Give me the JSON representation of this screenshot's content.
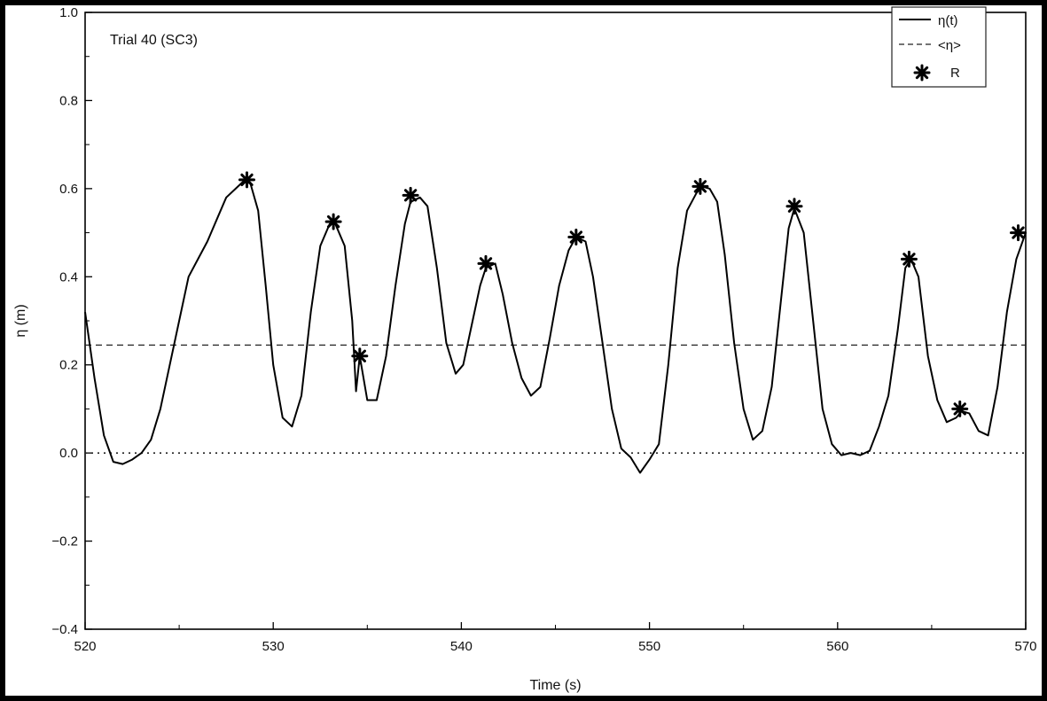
{
  "chart_data": {
    "type": "line",
    "title": "",
    "annotation": "Trial 40 (SC3)",
    "xlabel": "Time (s)",
    "ylabel": "η (m)",
    "xlim": [
      520,
      570
    ],
    "ylim": [
      -0.4,
      1.0
    ],
    "xticks": [
      520,
      530,
      540,
      550,
      560,
      570
    ],
    "xtick_labels": [
      "520",
      "530",
      "540",
      "550",
      "560",
      "570"
    ],
    "yticks": [
      -0.4,
      -0.2,
      0.0,
      0.2,
      0.4,
      0.6,
      0.8,
      1.0
    ],
    "ytick_labels": [
      "−0.4",
      "−0.2",
      "0.0",
      "0.2",
      "0.4",
      "0.6",
      "0.8",
      "1.0"
    ],
    "grid": false,
    "legend_position": "top-right",
    "legend": [
      "η(t)",
      "<η>",
      "R"
    ],
    "series": [
      {
        "name": "η(t)",
        "style": "solid",
        "x": [
          520.0,
          520.5,
          521.0,
          521.5,
          522.0,
          522.5,
          523.0,
          523.5,
          524.0,
          524.5,
          525.0,
          525.5,
          526.0,
          526.5,
          527.0,
          527.5,
          528.0,
          528.5,
          528.8,
          529.2,
          529.6,
          530.0,
          530.5,
          531.0,
          531.5,
          532.0,
          532.5,
          533.0,
          533.3,
          533.8,
          534.2,
          534.4,
          534.6,
          535.0,
          535.5,
          536.0,
          536.5,
          537.0,
          537.3,
          537.8,
          538.2,
          538.7,
          539.2,
          539.7,
          540.1,
          540.6,
          541.0,
          541.3,
          541.8,
          542.2,
          542.7,
          543.2,
          543.7,
          544.2,
          544.7,
          545.2,
          545.7,
          546.1,
          546.6,
          547.0,
          547.5,
          548.0,
          548.5,
          549.0,
          549.5,
          550.0,
          550.5,
          551.0,
          551.5,
          552.0,
          552.5,
          552.8,
          553.2,
          553.6,
          554.0,
          554.5,
          555.0,
          555.5,
          556.0,
          556.5,
          557.0,
          557.4,
          557.7,
          558.2,
          558.7,
          559.2,
          559.7,
          560.2,
          560.7,
          561.2,
          561.7,
          562.2,
          562.7,
          563.2,
          563.6,
          563.9,
          564.3,
          564.8,
          565.3,
          565.8,
          566.3,
          566.6,
          567.0,
          567.5,
          568.0,
          568.5,
          569.0,
          569.5,
          570.0
        ],
        "y": [
          0.32,
          0.17,
          0.04,
          -0.02,
          -0.025,
          -0.015,
          0.0,
          0.03,
          0.1,
          0.2,
          0.3,
          0.4,
          0.44,
          0.48,
          0.53,
          0.58,
          0.6,
          0.62,
          0.61,
          0.55,
          0.38,
          0.2,
          0.08,
          0.06,
          0.13,
          0.32,
          0.47,
          0.52,
          0.52,
          0.47,
          0.3,
          0.14,
          0.22,
          0.12,
          0.12,
          0.22,
          0.38,
          0.52,
          0.57,
          0.58,
          0.56,
          0.42,
          0.25,
          0.18,
          0.2,
          0.3,
          0.38,
          0.42,
          0.43,
          0.36,
          0.25,
          0.17,
          0.13,
          0.15,
          0.26,
          0.38,
          0.46,
          0.49,
          0.48,
          0.4,
          0.25,
          0.1,
          0.01,
          -0.01,
          -0.045,
          -0.015,
          0.02,
          0.2,
          0.42,
          0.55,
          0.59,
          0.605,
          0.6,
          0.57,
          0.45,
          0.25,
          0.1,
          0.03,
          0.05,
          0.15,
          0.35,
          0.51,
          0.555,
          0.5,
          0.3,
          0.1,
          0.02,
          -0.005,
          0.0,
          -0.005,
          0.005,
          0.06,
          0.13,
          0.28,
          0.42,
          0.44,
          0.4,
          0.22,
          0.12,
          0.07,
          0.08,
          0.095,
          0.09,
          0.05,
          0.04,
          0.15,
          0.32,
          0.44,
          0.5
        ]
      },
      {
        "name": "<η>",
        "style": "dashed",
        "value": 0.245
      },
      {
        "name": "",
        "style": "dotted",
        "value": 0.0
      },
      {
        "name": "R",
        "style": "markers",
        "x": [
          528.6,
          533.2,
          534.6,
          537.3,
          541.3,
          546.1,
          552.7,
          557.7,
          563.8,
          566.5,
          569.6
        ],
        "y": [
          0.62,
          0.525,
          0.22,
          0.585,
          0.43,
          0.49,
          0.605,
          0.56,
          0.44,
          0.1,
          0.5
        ]
      }
    ]
  }
}
